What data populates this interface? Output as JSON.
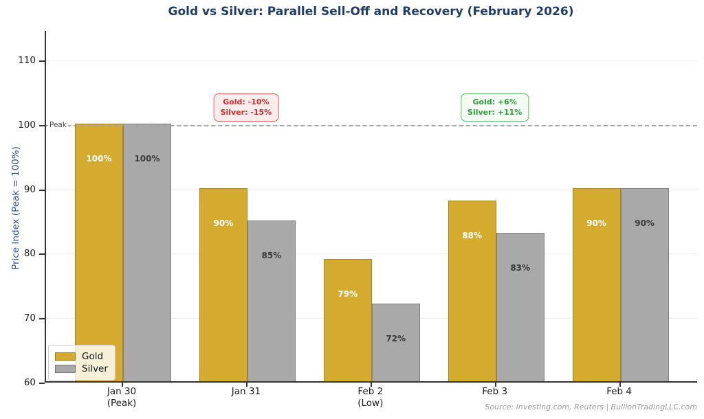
{
  "title": "Gold vs Silver: Parallel Sell-Off and Recovery (February 2026)",
  "peak_line": {
    "label": "Peak",
    "value": 100
  },
  "annotations": [
    {
      "kind": "selloff",
      "lines": [
        "Gold: -10%",
        "Silver: -15%"
      ],
      "text_color": "#cf2d2d",
      "group_index": 1
    },
    {
      "kind": "recovery",
      "lines": [
        "Gold: +6%",
        "Silver: +11%"
      ],
      "text_color": "#2f9e3f",
      "group_index": 3
    }
  ],
  "legend": {
    "items": [
      {
        "label": "Gold",
        "fill": "#d4ab2f",
        "edge": "#9c7d1c"
      },
      {
        "label": "Silver",
        "fill": "#a9a9a9",
        "edge": "#777777"
      }
    ]
  },
  "source": "Source: Investing.com, Reuters | BullionTradingLLC.com",
  "chart_data": {
    "type": "bar",
    "title": "Gold vs Silver: Parallel Sell-Off and Recovery (February 2026)",
    "categories": [
      [
        "Jan 30",
        "(Peak)"
      ],
      [
        "Jan 31"
      ],
      [
        "Feb 2",
        "(Low)"
      ],
      [
        "Feb 3"
      ],
      [
        "Feb 4"
      ]
    ],
    "series": [
      {
        "name": "Gold",
        "values": [
          100,
          90,
          79,
          88,
          90
        ],
        "labels": [
          "100%",
          "90%",
          "79%",
          "88%",
          "90%"
        ],
        "fill": "#d4ab2f",
        "edge": "#a8861d",
        "label_color": "#ffffff"
      },
      {
        "name": "Silver",
        "values": [
          100,
          85,
          72,
          83,
          90
        ],
        "labels": [
          "100%",
          "85%",
          "72%",
          "83%",
          "90%"
        ],
        "fill": "#a9a9a9",
        "edge": "#7f7f7f",
        "label_color": "#3a3a3a"
      }
    ],
    "xlabel": "",
    "ylabel": "Price Index (Peak = 100%)",
    "y_ticks": [
      60,
      70,
      80,
      90,
      100,
      110
    ],
    "ylim": [
      60,
      114.5
    ],
    "reference_line": {
      "value": 100,
      "label": "Peak",
      "style": "dashed"
    },
    "grid": true,
    "legend_position": "lower-left"
  }
}
